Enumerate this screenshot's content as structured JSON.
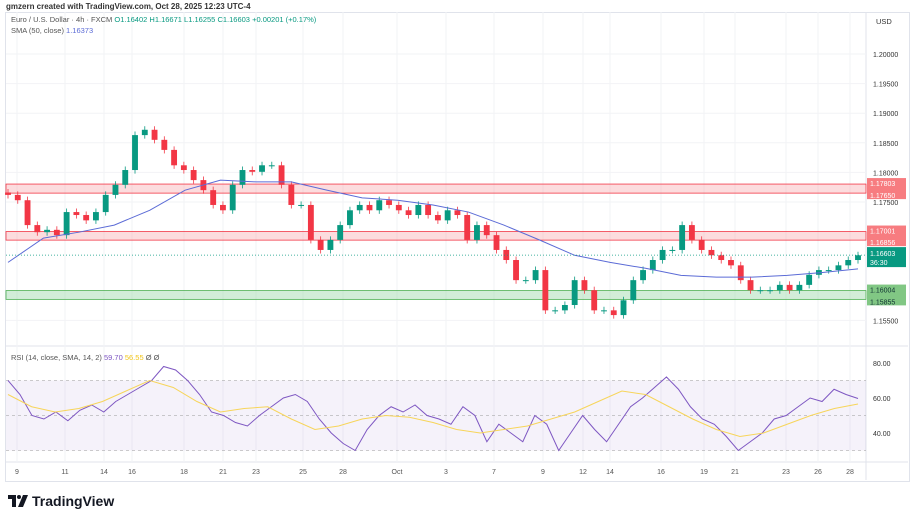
{
  "credit": "gmzern created with TradingView.com, Oct 28, 2025 12:23 UTC-4",
  "legend": {
    "symbol": "Euro / U.S. Dollar · 4h · FXCM",
    "open": "O1.16402",
    "high": "H1.16671",
    "low": "L1.16255",
    "close": "C1.16603",
    "change": "+0.00201 (+0.17%)",
    "sma_label": "SMA (50, close)",
    "sma_value": "1.16373",
    "rsi_label": "RSI (14, close, SMA, 14, 2)",
    "rsi_value": "59.70",
    "rsi_ma_value": "56.55",
    "rsi_extra": "Ø Ø"
  },
  "currency": "USD",
  "logo": "TradingView",
  "colors": {
    "up": "#089981",
    "down": "#f23645",
    "sma": "#5b6bd6",
    "rsi": "#7e57c2",
    "rsi_ma": "#f7d55a",
    "resistance": "#f7a8ad",
    "support": "#8fd19e"
  },
  "chart_data": {
    "type": "candlestick",
    "ylim": [
      1.153,
      1.2035
    ],
    "price_ticks": [
      "1.20000",
      "1.19500",
      "1.19000",
      "1.18500",
      "1.18000",
      "1.17500",
      "1.15500"
    ],
    "x_ticks": [
      "9",
      "11",
      "14",
      "16",
      "18",
      "21",
      "23",
      "25",
      "28",
      "Oct",
      "3",
      "7",
      "9",
      "12",
      "14",
      "16",
      "19",
      "21",
      "23",
      "26",
      "28"
    ],
    "closes": [
      1.1762,
      1.1753,
      1.1711,
      1.1699,
      1.1703,
      1.1694,
      1.1733,
      1.1728,
      1.1719,
      1.1733,
      1.1762,
      1.1779,
      1.1804,
      1.1863,
      1.1872,
      1.1855,
      1.1838,
      1.1812,
      1.1804,
      1.1787,
      1.177,
      1.1745,
      1.1736,
      1.1779,
      1.1804,
      1.1801,
      1.1812,
      1.1812,
      1.1779,
      1.1745,
      1.1745,
      1.1686,
      1.1669,
      1.1686,
      1.1711,
      1.1736,
      1.1745,
      1.1736,
      1.1753,
      1.1745,
      1.1736,
      1.1728,
      1.1745,
      1.1728,
      1.1719,
      1.1736,
      1.1728,
      1.1686,
      1.1711,
      1.1694,
      1.1669,
      1.1652,
      1.1618,
      1.1618,
      1.1635,
      1.1567,
      1.1567,
      1.1576,
      1.1618,
      1.1601,
      1.1567,
      1.1567,
      1.1559,
      1.1584,
      1.1618,
      1.1635,
      1.1652,
      1.1669,
      1.1669,
      1.1711,
      1.1686,
      1.1669,
      1.166,
      1.1652,
      1.1643,
      1.1618,
      1.1601,
      1.1601,
      1.1601,
      1.161,
      1.1601,
      1.161,
      1.1627,
      1.1635,
      1.1635,
      1.1643,
      1.1652,
      1.166
    ],
    "sma": [
      1.1648,
      1.1689,
      1.1699,
      1.1711,
      1.1736,
      1.177,
      1.1787,
      1.1784,
      1.1784,
      1.177,
      1.1757,
      1.1753,
      1.1745,
      1.1733,
      1.1711,
      1.1686,
      1.166,
      1.1648,
      1.1638,
      1.1626,
      1.1623,
      1.1623,
      1.1626,
      1.1631,
      1.1637
    ],
    "zones": [
      {
        "type": "resistance",
        "top": "1.17803",
        "bottom": "1.17650"
      },
      {
        "type": "resistance",
        "top": "1.17001",
        "bottom": "1.16856"
      },
      {
        "type": "support",
        "top": "1.16004",
        "bottom": "1.15855"
      }
    ],
    "last_price": "1.16603",
    "countdown": "36:30",
    "rsi": {
      "ylim": [
        25,
        85
      ],
      "ticks": [
        "80.00",
        "60.00",
        "40.00"
      ],
      "bands": [
        70,
        30
      ],
      "values": [
        70,
        62,
        50,
        48,
        52,
        47,
        53,
        56,
        52,
        58,
        62,
        66,
        70,
        78,
        76,
        70,
        62,
        52,
        50,
        46,
        44,
        50,
        55,
        60,
        62,
        58,
        48,
        40,
        34,
        30,
        42,
        50,
        55,
        52,
        56,
        50,
        48,
        45,
        55,
        50,
        35,
        45,
        40,
        35,
        50,
        45,
        30,
        40,
        50,
        42,
        35,
        45,
        55,
        60,
        66,
        72,
        65,
        55,
        48,
        45,
        38,
        30,
        35,
        40,
        48,
        50,
        55,
        60,
        58,
        65,
        62,
        59.7
      ],
      "ma": [
        62,
        55,
        52,
        54,
        58,
        64,
        70,
        66,
        58,
        52,
        54,
        55,
        48,
        42,
        44,
        48,
        50,
        49,
        46,
        42,
        40,
        42,
        44,
        48,
        52,
        58,
        64,
        62,
        55,
        48,
        42,
        38,
        40,
        45,
        50,
        54,
        56.55
      ]
    }
  }
}
